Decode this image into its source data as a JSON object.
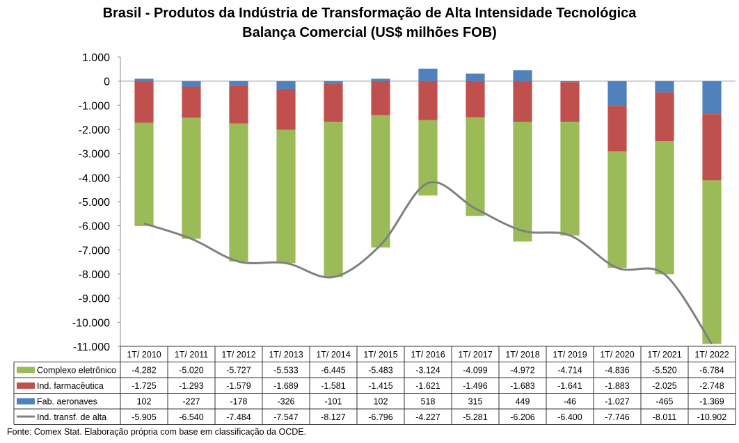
{
  "chart_data": {
    "type": "bar",
    "stacked": true,
    "title": "Brasil - Produtos da Indústria de Transformação de Alta Intensidade Tecnológica",
    "subtitle": "Balança Comercial (US$ milhões FOB)",
    "categories": [
      "1T/ 2010",
      "1T/ 2011",
      "1T/ 2012",
      "1T/ 2013",
      "1T/ 2014",
      "1T/ 2015",
      "1T/ 2016",
      "1T/ 2017",
      "1T/ 2018",
      "1T/ 2019",
      "1T/ 2020",
      "1T/ 2021",
      "1T/ 2022"
    ],
    "series": [
      {
        "name": "Complexo eletrônico",
        "kind": "bar",
        "color": "#9BBB59",
        "values": [
          -4282,
          -5020,
          -5727,
          -5533,
          -6445,
          -5483,
          -3124,
          -4099,
          -4972,
          -4714,
          -4836,
          -5520,
          -6784
        ],
        "labels": [
          "-4.282",
          "-5.020",
          "-5.727",
          "-5.533",
          "-6.445",
          "-5.483",
          "-3.124",
          "-4.099",
          "-4.972",
          "-4.714",
          "-4.836",
          "-5.520",
          "-6.784"
        ]
      },
      {
        "name": "Ind. farmacêutica",
        "kind": "bar",
        "color": "#C0504D",
        "values": [
          -1725,
          -1293,
          -1579,
          -1689,
          -1581,
          -1415,
          -1621,
          -1496,
          -1683,
          -1641,
          -1883,
          -2025,
          -2748
        ],
        "labels": [
          "-1.725",
          "-1.293",
          "-1.579",
          "-1.689",
          "-1.581",
          "-1.415",
          "-1.621",
          "-1.496",
          "-1.683",
          "-1.641",
          "-1.883",
          "-2.025",
          "-2.748"
        ]
      },
      {
        "name": "Fab. aeronaves",
        "kind": "bar",
        "color": "#4F81BD",
        "values": [
          102,
          -227,
          -178,
          -326,
          -101,
          102,
          518,
          315,
          449,
          -46,
          -1027,
          -465,
          -1369
        ],
        "labels": [
          "102",
          "-227",
          "-178",
          "-326",
          "-101",
          "102",
          "518",
          "315",
          "449",
          "-46",
          "-1.027",
          "-465",
          "-1.369"
        ]
      },
      {
        "name": "Ind. transf. de alta",
        "kind": "line",
        "color": "#808080",
        "values": [
          -5905,
          -6540,
          -7484,
          -7547,
          -8127,
          -6796,
          -4227,
          -5281,
          -6206,
          -6400,
          -7746,
          -8011,
          -10902
        ],
        "labels": [
          "-5.905",
          "-6.540",
          "-7.484",
          "-7.547",
          "-8.127",
          "-6.796",
          "-4.227",
          "-5.281",
          "-6.206",
          "-6.400",
          "-7.746",
          "-8.011",
          "-10.902"
        ]
      }
    ],
    "ylim": [
      -11000,
      1000
    ],
    "yticks": [
      1000,
      0,
      -1000,
      -2000,
      -3000,
      -4000,
      -5000,
      -6000,
      -7000,
      -8000,
      -9000,
      -10000,
      -11000
    ],
    "ytick_labels": [
      "1.000",
      "0",
      "-1.000",
      "-2.000",
      "-3.000",
      "-4.000",
      "-5.000",
      "-6.000",
      "-7.000",
      "-8.000",
      "-9.000",
      "-10.000",
      "-11.000"
    ],
    "grid": false,
    "legend": "data table below chart"
  },
  "footer": "Fonte:  Comex Stat. Elaboração própria com base em classificação da OCDE."
}
